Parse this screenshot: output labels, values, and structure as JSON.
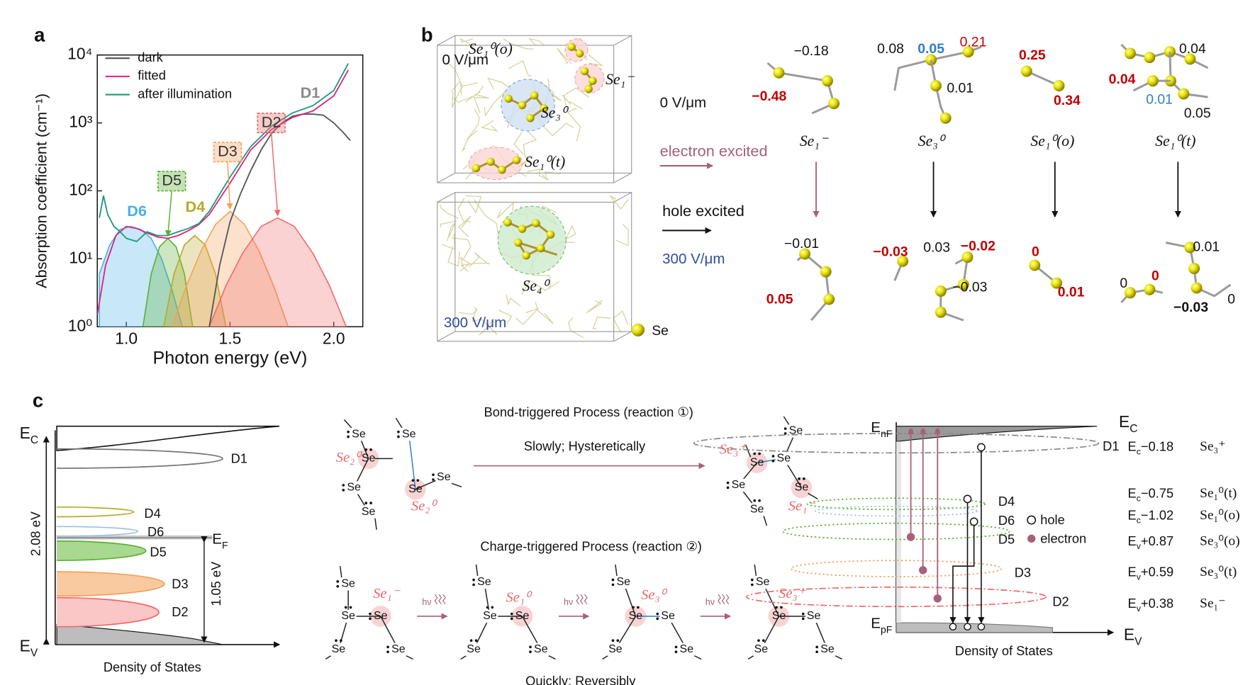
{
  "panel_labels": [
    "a",
    "b",
    "c"
  ],
  "chart_data": {
    "type": "line",
    "xlabel": "Photon energy (eV)",
    "ylabel": "Absorption coefficient (cm⁻¹)",
    "xlim": [
      0.86,
      2.14
    ],
    "xticks": [
      {
        "value": 1,
        "label": "1.0"
      },
      1.5,
      {
        "value": 2,
        "label": "2.0"
      }
    ],
    "ylim": [
      1,
      10000
    ],
    "log_y": true,
    "yticks": [
      {
        "value": 1,
        "label": "10⁰"
      },
      {
        "value": 10,
        "label": "10¹"
      },
      {
        "value": 100,
        "label": "10²"
      },
      {
        "value": 1000,
        "label": "10³"
      },
      {
        "value": 10000,
        "label": "10⁴"
      }
    ],
    "legend": "upper left",
    "series": [
      {
        "name": "dark",
        "color": "#555555",
        "x": [
          1.4,
          1.45,
          1.5,
          1.55,
          1.6,
          1.65,
          1.7,
          1.75,
          1.8,
          1.85,
          1.9,
          1.95,
          2.0,
          2.05,
          2.08
        ],
        "values": [
          1,
          8,
          35,
          90,
          200,
          400,
          700,
          1000,
          1250,
          1350,
          1350,
          1300,
          1000,
          700,
          550
        ]
      },
      {
        "name": "fitted",
        "color": "#e0227e",
        "x": [
          0.86,
          0.9,
          0.95,
          1.0,
          1.05,
          1.1,
          1.15,
          1.2,
          1.25,
          1.3,
          1.35,
          1.4,
          1.5,
          1.6,
          1.7,
          1.8,
          1.9,
          2.0,
          2.07
        ],
        "values": [
          1.5,
          8,
          22,
          30,
          28,
          24,
          21,
          20,
          22,
          26,
          32,
          45,
          130,
          400,
          800,
          1200,
          1500,
          2500,
          6000
        ]
      },
      {
        "name": "after illumination",
        "color": "#1a9a7a",
        "x": [
          0.87,
          0.89,
          0.91,
          0.94,
          0.97,
          1.0,
          1.05,
          1.1,
          1.15,
          1.2,
          1.25,
          1.3,
          1.35,
          1.4,
          1.5,
          1.6,
          1.7,
          1.8,
          1.9,
          2.0,
          2.07
        ],
        "values": [
          40,
          85,
          45,
          30,
          25,
          20,
          18,
          25,
          22,
          22,
          25,
          28,
          33,
          50,
          160,
          450,
          900,
          1400,
          1800,
          3000,
          7500
        ]
      }
    ],
    "peaks": [
      {
        "name": "D6",
        "color": "#4ab0e8",
        "x": [
          0.87,
          0.92,
          0.97,
          1.02,
          1.07,
          1.12,
          1.17,
          1.22,
          1.27
        ],
        "values": [
          6,
          16,
          27,
          30,
          27,
          20,
          10,
          3.5,
          1
        ]
      },
      {
        "name": "D5",
        "color": "#5ab031",
        "x": [
          1.08,
          1.12,
          1.16,
          1.2,
          1.24,
          1.28,
          1.32
        ],
        "values": [
          1,
          6,
          15,
          20,
          15,
          6,
          1
        ]
      },
      {
        "name": "D4",
        "color": "#b9a92a",
        "x": [
          1.18,
          1.23,
          1.28,
          1.33,
          1.38,
          1.43,
          1.48
        ],
        "values": [
          1,
          6,
          16,
          22,
          16,
          6,
          1
        ]
      },
      {
        "name": "D3",
        "color": "#f5a05a",
        "x": [
          1.22,
          1.29,
          1.36,
          1.43,
          1.5,
          1.57,
          1.64,
          1.71,
          1.78
        ],
        "values": [
          1,
          4,
          13,
          32,
          50,
          32,
          13,
          4,
          1
        ]
      },
      {
        "name": "D2",
        "color": "#f06a6a",
        "x": [
          1.4,
          1.48,
          1.56,
          1.65,
          1.73,
          1.81,
          1.9,
          1.98,
          2.06
        ],
        "values": [
          1,
          4,
          12,
          30,
          40,
          30,
          12,
          4,
          1
        ]
      }
    ],
    "annotations": [
      "D1"
    ]
  },
  "panel_b": {
    "field_top": "0 V/μm",
    "field_bottom": "300 V/μm",
    "clusters": [
      "Se₁⁰(o)",
      "Se₁⁻",
      "Se₃⁰",
      "Se₁⁰(t)",
      "Se₄⁰"
    ],
    "legend": "Se",
    "electron_excited": "electron excited",
    "hole_excited": "hole excited",
    "field_0": "0 V/μm",
    "field_300": "300 V/μm",
    "columns": [
      {
        "species": "Se₁⁻",
        "top": [
          "−0.18",
          "−0.48"
        ],
        "bottom": [
          "−0.01",
          "0.05"
        ]
      },
      {
        "species": "Se₃⁰",
        "top": [
          "0.08",
          "0.05",
          "0.21",
          "0.01"
        ],
        "bottom": [
          "−0.03",
          "0.03",
          "−0.02",
          "−0.03"
        ]
      },
      {
        "species": "Se₁⁰(o)",
        "top": [
          "0.25",
          "0.34"
        ],
        "bottom": [
          "0",
          "0.01"
        ]
      },
      {
        "species": "Se₁⁰(t)",
        "top": [
          "0.04",
          "0.04",
          "0.01",
          "0.05"
        ],
        "bottom": [
          "0.01",
          "0",
          "0",
          "−0.03",
          "0"
        ]
      }
    ]
  },
  "panel_c": {
    "dos_left": {
      "ec": {
        "base": "E",
        "sub": "C"
      },
      "ev": {
        "base": "E",
        "sub": "V"
      },
      "ef": {
        "base": "E",
        "sub": "F"
      },
      "gap": "2.08 eV",
      "ef_gap": "1.05 eV",
      "levels": [
        "D1",
        "D4",
        "D6",
        "D5",
        "D3",
        "D2"
      ],
      "xlabel": "Density of States"
    },
    "reactions": {
      "bond_title": "Bond-triggered Process (reaction ①)",
      "bond_rate": "Slowly; Hysteretically",
      "charge_title": "Charge-triggered Process (reaction ②)",
      "charge_rate": "Quickly; Reversibly",
      "atom": "Se",
      "light": "hν",
      "bond_species": [
        "Se₂⁰",
        "Se₂⁰",
        "Se₃⁺",
        "Se₁⁻"
      ],
      "charge_species": [
        "Se₁⁻",
        "Se₁⁰",
        "Se₃⁰",
        "Se₃⁺"
      ]
    },
    "dos_right": {
      "enf": {
        "base": "E",
        "sub": "nF"
      },
      "ec": {
        "base": "E",
        "sub": "C"
      },
      "epf": {
        "base": "E",
        "sub": "pF"
      },
      "ev": {
        "base": "E",
        "sub": "V"
      },
      "defects": [
        "D1",
        "D4",
        "D6",
        "D5",
        "D3",
        "D2"
      ],
      "hole": "hole",
      "electron": "electron",
      "xlabel": "Density of States",
      "levels": [
        {
          "base": "E",
          "sub": "c",
          "offset": "−0.18",
          "species": "Se₃⁺"
        },
        {
          "base": "E",
          "sub": "c",
          "offset": "−0.75",
          "species": "Se₁⁰(t)"
        },
        {
          "base": "E",
          "sub": "c",
          "offset": "−1.02",
          "species": "Se₁⁰(o)"
        },
        {
          "base": "E",
          "sub": "v",
          "offset": "+0.87",
          "species": "Se₃⁰(o)"
        },
        {
          "base": "E",
          "sub": "v",
          "offset": "+0.59",
          "species": "Se₃⁰(t)"
        },
        {
          "base": "E",
          "sub": "v",
          "offset": "+0.38",
          "species": "Se₁⁻"
        }
      ]
    }
  }
}
